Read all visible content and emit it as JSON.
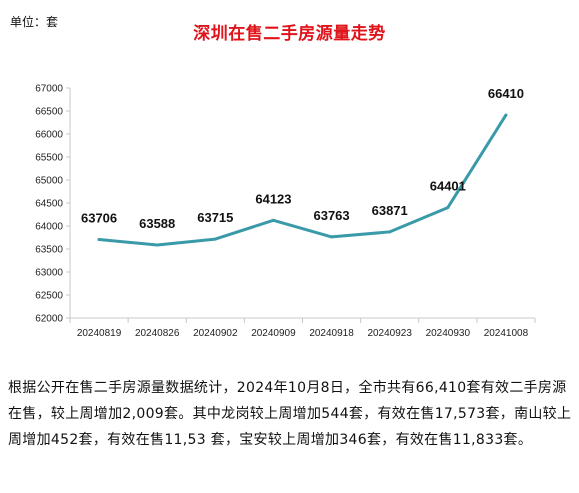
{
  "chart_data": {
    "type": "line",
    "title": "深圳在售二手房源量走势",
    "unit_label": "单位：套",
    "categories": [
      "20240819",
      "20240826",
      "20240902",
      "20240909",
      "20240918",
      "20240923",
      "20240930",
      "20241008"
    ],
    "values": [
      63706,
      63588,
      63715,
      64123,
      63763,
      63871,
      64401,
      66410
    ],
    "ylim": [
      62000,
      67000
    ],
    "yticks": [
      62000,
      62500,
      63000,
      63500,
      64000,
      64500,
      65000,
      65500,
      66000,
      66500,
      67000
    ],
    "grid": false,
    "legend": "none",
    "line_color": "#3a9aa8"
  },
  "article": {
    "text": "根据公开在售二手房源量数据统计，2024年10月8日，全市共有66,410套有效二手房源在售，较上周增加2,009套。其中龙岗较上周增加544套，有效在售17,573套，南山较上周增加452套，有效在售11,53 套，宝安较上周增加346套，有效在售11,833套。"
  },
  "colors": {
    "title": "#e0131a",
    "line": "#3a9aa8",
    "axis": "#c8c8c8"
  }
}
